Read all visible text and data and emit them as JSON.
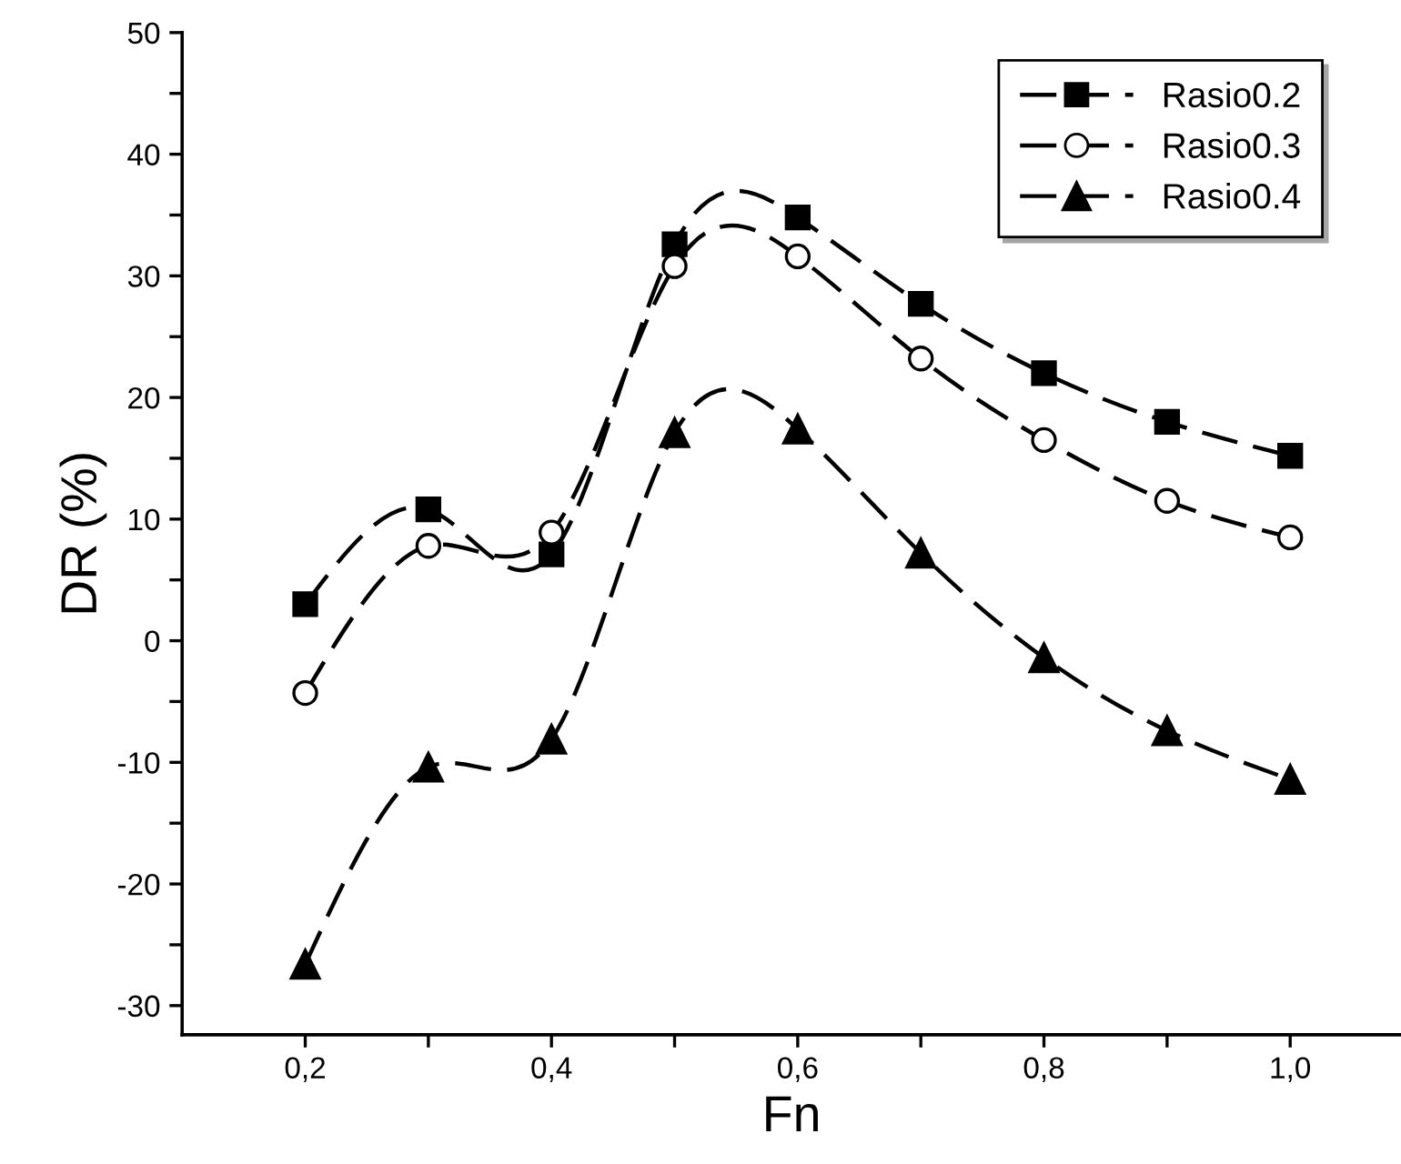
{
  "chart_data": {
    "type": "line",
    "xlabel": "Fn",
    "ylabel": "DR (%)",
    "x": [
      0.2,
      0.3,
      0.4,
      0.5,
      0.6,
      0.7,
      0.8,
      0.9,
      1.0
    ],
    "series": [
      {
        "name": "Rasio0.2",
        "color": "#000000",
        "marker": "square",
        "values": [
          3.0,
          10.8,
          7.1,
          32.6,
          34.8,
          27.7,
          22.0,
          18.0,
          15.2
        ]
      },
      {
        "name": "Rasio0.3",
        "color": "#000000",
        "marker": "circle",
        "values": [
          -4.3,
          7.8,
          8.9,
          30.8,
          31.6,
          23.2,
          16.5,
          11.5,
          8.5
        ]
      },
      {
        "name": "Rasio0.4",
        "color": "#000000",
        "marker": "triangle",
        "values": [
          -26.6,
          -10.4,
          -8.1,
          17.1,
          17.4,
          7.2,
          -1.4,
          -7.4,
          -11.4
        ]
      }
    ],
    "line_style": "dashed",
    "xlim": [
      0.1,
      1.09
    ],
    "ylim": [
      -32.4,
      50
    ],
    "xticks": [
      {
        "value": 0.2,
        "label": "0,2"
      },
      {
        "value": 0.3,
        "label": null
      },
      {
        "value": 0.4,
        "label": "0,4"
      },
      {
        "value": 0.5,
        "label": null
      },
      {
        "value": 0.6,
        "label": "0,6"
      },
      {
        "value": 0.7,
        "label": null
      },
      {
        "value": 0.8,
        "label": "0,8"
      },
      {
        "value": 0.9,
        "label": null
      },
      {
        "value": 1.0,
        "label": "1,0"
      }
    ],
    "yticks": [
      -30,
      {
        "value": -25,
        "label": null
      },
      -20,
      {
        "value": -15,
        "label": null
      },
      -10,
      {
        "value": -5,
        "label": null
      },
      0,
      {
        "value": 5,
        "label": null
      },
      10,
      {
        "value": 15,
        "label": null
      },
      20,
      {
        "value": 25,
        "label": null
      },
      30,
      {
        "value": 35,
        "label": null
      },
      40,
      {
        "value": 45,
        "label": null
      },
      50
    ],
    "grid": false,
    "legend": "top right"
  }
}
